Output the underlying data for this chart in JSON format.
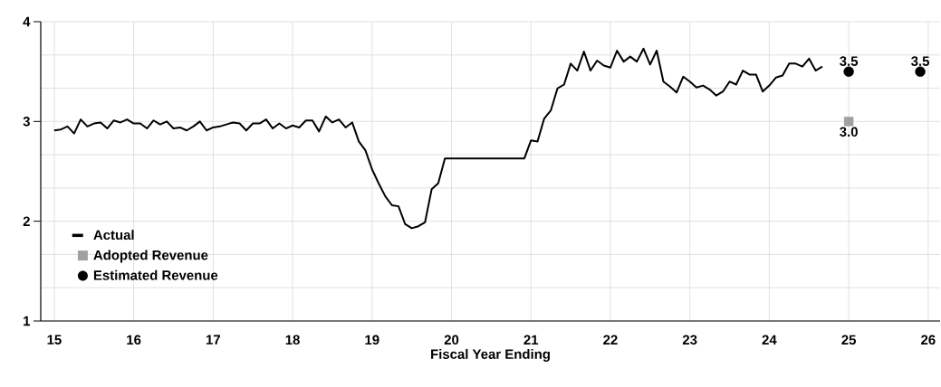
{
  "chart_data": {
    "type": "line",
    "xlabel": "Fiscal Year Ending",
    "xlim": [
      14.83,
      26.15
    ],
    "ylim": [
      1,
      4
    ],
    "xticks": [
      15,
      16,
      17,
      18,
      19,
      20,
      21,
      22,
      23,
      24,
      25,
      26
    ],
    "yticks": [
      1,
      2,
      3,
      4
    ],
    "grid": true,
    "legend": "left",
    "series": [
      {
        "name": "Actual",
        "color": "#000000",
        "x": [
          15,
          15.083,
          15.167,
          15.25,
          15.333,
          15.417,
          15.5,
          15.583,
          15.667,
          15.75,
          15.833,
          15.917,
          16,
          16.083,
          16.167,
          16.25,
          16.333,
          16.417,
          16.5,
          16.583,
          16.667,
          16.75,
          16.833,
          16.917,
          17,
          17.083,
          17.167,
          17.25,
          17.333,
          17.417,
          17.5,
          17.583,
          17.667,
          17.75,
          17.833,
          17.917,
          18,
          18.083,
          18.167,
          18.25,
          18.333,
          18.417,
          18.5,
          18.583,
          18.667,
          18.75,
          18.833,
          18.917,
          19,
          19.083,
          19.167,
          19.25,
          19.333,
          19.417,
          19.5,
          19.583,
          19.667,
          19.75,
          19.833,
          19.917,
          20.917,
          21,
          21.083,
          21.167,
          21.25,
          21.333,
          21.417,
          21.5,
          21.583,
          21.667,
          21.75,
          21.833,
          21.917,
          22,
          22.083,
          22.167,
          22.25,
          22.333,
          22.417,
          22.5,
          22.583,
          22.667,
          22.75,
          22.833,
          22.917,
          23,
          23.083,
          23.167,
          23.25,
          23.333,
          23.417,
          23.5,
          23.583,
          23.667,
          23.75,
          23.833,
          23.917,
          24,
          24.083,
          24.167,
          24.25,
          24.333,
          24.417,
          24.5,
          24.583,
          24.667
        ],
        "values": [
          2.91,
          2.92,
          2.95,
          2.88,
          3.02,
          2.95,
          2.98,
          2.99,
          2.93,
          3.01,
          2.99,
          3.02,
          2.98,
          2.98,
          2.93,
          3.01,
          2.97,
          3.0,
          2.93,
          2.94,
          2.91,
          2.95,
          3.0,
          2.91,
          2.94,
          2.95,
          2.97,
          2.99,
          2.98,
          2.91,
          2.98,
          2.98,
          3.02,
          2.93,
          2.98,
          2.93,
          2.96,
          2.94,
          3.01,
          3.01,
          2.9,
          3.05,
          2.99,
          3.02,
          2.94,
          2.99,
          2.8,
          2.71,
          2.52,
          2.38,
          2.25,
          2.16,
          2.15,
          1.97,
          1.93,
          1.95,
          1.99,
          2.32,
          2.38,
          2.63,
          2.63,
          2.81,
          2.8,
          3.03,
          3.11,
          3.33,
          3.37,
          3.58,
          3.51,
          3.7,
          3.51,
          3.61,
          3.56,
          3.54,
          3.71,
          3.6,
          3.65,
          3.6,
          3.73,
          3.57,
          3.71,
          3.4,
          3.35,
          3.29,
          3.45,
          3.4,
          3.34,
          3.36,
          3.32,
          3.26,
          3.3,
          3.4,
          3.37,
          3.51,
          3.47,
          3.47,
          3.3,
          3.36,
          3.44,
          3.46,
          3.58,
          3.58,
          3.55,
          3.63,
          3.51,
          3.55
        ]
      },
      {
        "name": "Adopted Revenue",
        "type": "scatter",
        "marker": "square",
        "color": "#a0a0a0",
        "x": [
          25
        ],
        "values": [
          3.0
        ],
        "value_labels": [
          "3.0"
        ]
      },
      {
        "name": "Estimated Revenue",
        "type": "scatter",
        "marker": "circle",
        "color": "#000000",
        "x": [
          25,
          25.9
        ],
        "values": [
          3.5,
          3.5
        ],
        "value_labels": [
          "3.5",
          "3.5"
        ]
      }
    ]
  }
}
